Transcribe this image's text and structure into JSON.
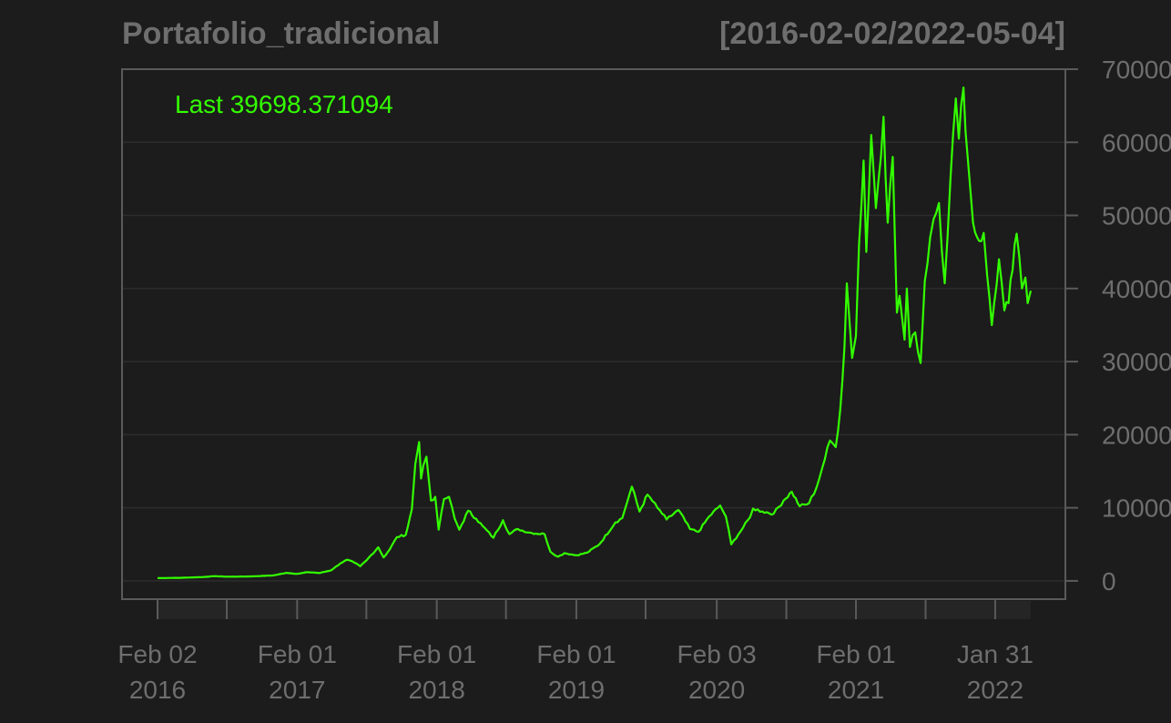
{
  "chart_data": {
    "type": "line",
    "title": "Portafolio_tradicional",
    "date_range": "[2016-02-02/2022-05-04]",
    "last_label": "Last 39698.371094",
    "ylim": [
      -2500,
      70000
    ],
    "y_ticks": [
      {
        "value": 0,
        "label": "0"
      },
      {
        "value": 10000,
        "label": "10000"
      },
      {
        "value": 20000,
        "label": "20000"
      },
      {
        "value": 30000,
        "label": "30000"
      },
      {
        "value": 40000,
        "label": "40000"
      },
      {
        "value": 50000,
        "label": "50000"
      },
      {
        "value": 60000,
        "label": "60000"
      },
      {
        "value": 70000,
        "label": "70000"
      }
    ],
    "x_ticks": [
      {
        "date": "2016-02-02",
        "line1": "Feb 02",
        "line2": "2016"
      },
      {
        "date": "2017-02-01",
        "line1": "Feb 01",
        "line2": "2017"
      },
      {
        "date": "2018-02-01",
        "line1": "Feb 01",
        "line2": "2018"
      },
      {
        "date": "2019-02-01",
        "line1": "Feb 01",
        "line2": "2019"
      },
      {
        "date": "2020-02-03",
        "line1": "Feb 03",
        "line2": "2020"
      },
      {
        "date": "2021-02-01",
        "line1": "Feb 01",
        "line2": "2021"
      },
      {
        "date": "2022-01-31",
        "line1": "Jan 31",
        "line2": "2022"
      }
    ],
    "minor_x_ticks": [
      "2016-08-01",
      "2017-08-01",
      "2018-08-01",
      "2019-08-01",
      "2020-08-03",
      "2021-08-02"
    ],
    "series": [
      {
        "color": "#33ff00",
        "points": [
          [
            "2016-02-02",
            380
          ],
          [
            "2016-04-01",
            420
          ],
          [
            "2016-06-01",
            530
          ],
          [
            "2016-07-01",
            650
          ],
          [
            "2016-08-01",
            575
          ],
          [
            "2016-10-01",
            610
          ],
          [
            "2016-12-01",
            750
          ],
          [
            "2017-01-04",
            1100
          ],
          [
            "2017-02-01",
            960
          ],
          [
            "2017-03-01",
            1200
          ],
          [
            "2017-04-01",
            1080
          ],
          [
            "2017-05-01",
            1450
          ],
          [
            "2017-05-25",
            2400
          ],
          [
            "2017-06-12",
            2900
          ],
          [
            "2017-07-01",
            2500
          ],
          [
            "2017-07-16",
            2000
          ],
          [
            "2017-08-01",
            2800
          ],
          [
            "2017-09-01",
            4600
          ],
          [
            "2017-09-15",
            3200
          ],
          [
            "2017-10-01",
            4300
          ],
          [
            "2017-10-20",
            6000
          ],
          [
            "2017-11-12",
            6300
          ],
          [
            "2017-11-28",
            9800
          ],
          [
            "2017-12-07",
            16000
          ],
          [
            "2017-12-17",
            19000
          ],
          [
            "2017-12-22",
            14000
          ],
          [
            "2017-12-28",
            15800
          ],
          [
            "2018-01-05",
            17000
          ],
          [
            "2018-01-17",
            11000
          ],
          [
            "2018-01-28",
            11500
          ],
          [
            "2018-02-06",
            7000
          ],
          [
            "2018-02-20",
            11200
          ],
          [
            "2018-03-05",
            11500
          ],
          [
            "2018-03-20",
            8500
          ],
          [
            "2018-04-01",
            7000
          ],
          [
            "2018-04-24",
            9600
          ],
          [
            "2018-05-15",
            8500
          ],
          [
            "2018-06-01",
            7500
          ],
          [
            "2018-06-29",
            5900
          ],
          [
            "2018-07-24",
            8300
          ],
          [
            "2018-08-10",
            6400
          ],
          [
            "2018-09-01",
            7100
          ],
          [
            "2018-10-01",
            6600
          ],
          [
            "2018-11-10",
            6400
          ],
          [
            "2018-11-25",
            4000
          ],
          [
            "2018-12-15",
            3300
          ],
          [
            "2019-01-01",
            3800
          ],
          [
            "2019-02-01",
            3500
          ],
          [
            "2019-03-01",
            3850
          ],
          [
            "2019-04-02",
            5000
          ],
          [
            "2019-05-14",
            8000
          ],
          [
            "2019-06-01",
            8600
          ],
          [
            "2019-06-26",
            12900
          ],
          [
            "2019-07-16",
            9500
          ],
          [
            "2019-08-06",
            11800
          ],
          [
            "2019-09-01",
            10000
          ],
          [
            "2019-09-25",
            8400
          ],
          [
            "2019-10-26",
            9700
          ],
          [
            "2019-11-25",
            7100
          ],
          [
            "2019-12-17",
            6700
          ],
          [
            "2020-01-14",
            8800
          ],
          [
            "2020-02-12",
            10300
          ],
          [
            "2020-02-27",
            8800
          ],
          [
            "2020-03-12",
            5000
          ],
          [
            "2020-03-31",
            6400
          ],
          [
            "2020-04-30",
            8700
          ],
          [
            "2020-05-08",
            9900
          ],
          [
            "2020-06-01",
            9500
          ],
          [
            "2020-07-01",
            9200
          ],
          [
            "2020-07-27",
            11000
          ],
          [
            "2020-08-17",
            12200
          ],
          [
            "2020-09-07",
            10200
          ],
          [
            "2020-10-01",
            10600
          ],
          [
            "2020-10-21",
            12800
          ],
          [
            "2020-11-05",
            15500
          ],
          [
            "2020-11-25",
            19200
          ],
          [
            "2020-12-10",
            18300
          ],
          [
            "2020-12-22",
            23500
          ],
          [
            "2021-01-02",
            32000
          ],
          [
            "2021-01-08",
            40700
          ],
          [
            "2021-01-22",
            30500
          ],
          [
            "2021-02-01",
            33500
          ],
          [
            "2021-02-09",
            46000
          ],
          [
            "2021-02-21",
            57500
          ],
          [
            "2021-02-28",
            45000
          ],
          [
            "2021-03-13",
            61000
          ],
          [
            "2021-03-25",
            51000
          ],
          [
            "2021-04-14",
            63500
          ],
          [
            "2021-04-25",
            49000
          ],
          [
            "2021-05-08",
            58000
          ],
          [
            "2021-05-19",
            36700
          ],
          [
            "2021-05-26",
            39000
          ],
          [
            "2021-06-08",
            33000
          ],
          [
            "2021-06-14",
            40000
          ],
          [
            "2021-06-22",
            32000
          ],
          [
            "2021-07-06",
            34000
          ],
          [
            "2021-07-20",
            29800
          ],
          [
            "2021-07-31",
            41000
          ],
          [
            "2021-08-14",
            47000
          ],
          [
            "2021-08-23",
            49500
          ],
          [
            "2021-09-06",
            51700
          ],
          [
            "2021-09-21",
            40700
          ],
          [
            "2021-10-06",
            55000
          ],
          [
            "2021-10-20",
            66000
          ],
          [
            "2021-10-28",
            60500
          ],
          [
            "2021-11-09",
            67500
          ],
          [
            "2021-11-20",
            58000
          ],
          [
            "2021-12-04",
            49000
          ],
          [
            "2021-12-20",
            46500
          ],
          [
            "2022-01-01",
            47600
          ],
          [
            "2022-01-10",
            41800
          ],
          [
            "2022-01-22",
            35000
          ],
          [
            "2022-02-10",
            44000
          ],
          [
            "2022-02-24",
            37000
          ],
          [
            "2022-03-07",
            38000
          ],
          [
            "2022-03-28",
            47500
          ],
          [
            "2022-04-11",
            40000
          ],
          [
            "2022-04-20",
            41500
          ],
          [
            "2022-04-26",
            38000
          ],
          [
            "2022-05-04",
            39698
          ]
        ]
      }
    ],
    "grid": true,
    "legend": "none"
  }
}
